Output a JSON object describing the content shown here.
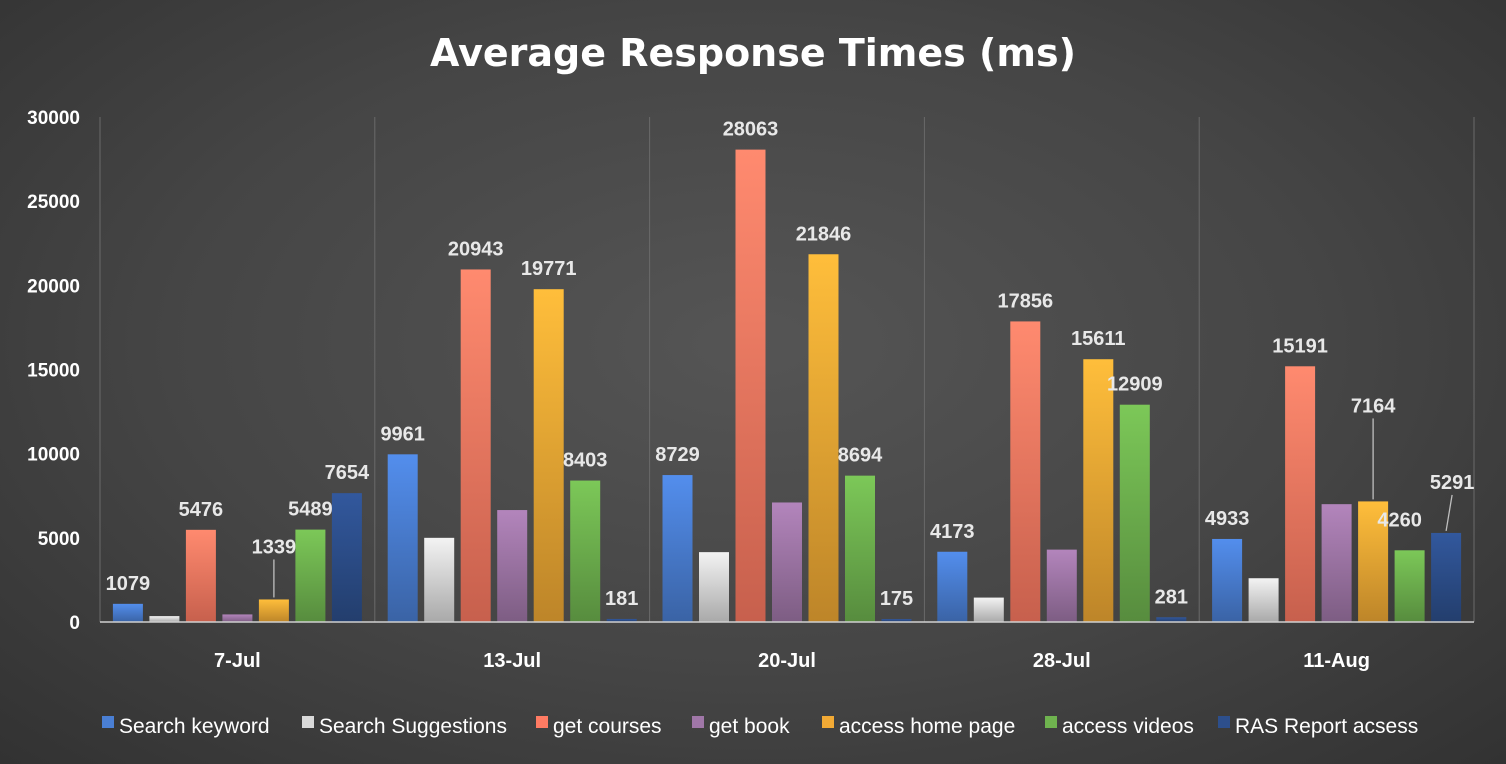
{
  "chart_data": {
    "type": "bar",
    "title": "Average Response Times (ms)",
    "xlabel": "",
    "ylabel": "",
    "ylim": [
      0,
      30000
    ],
    "yticks": [
      0,
      5000,
      10000,
      15000,
      20000,
      25000,
      30000
    ],
    "grid": "vertical category separators",
    "legend_position": "bottom",
    "categories": [
      "7-Jul",
      "13-Jul",
      "20-Jul",
      "28-Jul",
      "11-Aug"
    ],
    "series": [
      {
        "name": "Search keyword",
        "color": "#4a7fd4",
        "values": [
          1079,
          9961,
          8729,
          4173,
          4933
        ],
        "labels": [
          "1079",
          "9961",
          "8729",
          "4173",
          "4933"
        ]
      },
      {
        "name": "Search Suggestions",
        "color": "#d9d9d9",
        "values": [
          350,
          5000,
          4150,
          1450,
          2600
        ],
        "labels": [
          "",
          "",
          "",
          "",
          ""
        ]
      },
      {
        "name": "get courses",
        "color": "#ff7b63",
        "values": [
          5476,
          20943,
          28063,
          17856,
          15191
        ],
        "labels": [
          "5476",
          "20943",
          "28063",
          "17856",
          "15191"
        ]
      },
      {
        "name": "get book",
        "color": "#a077a8",
        "values": [
          450,
          6650,
          7100,
          4300,
          7000
        ],
        "labels": [
          "",
          "",
          "",
          "",
          ""
        ]
      },
      {
        "name": "access home page",
        "color": "#f2aa35",
        "values": [
          1339,
          19771,
          21846,
          15611,
          7164
        ],
        "labels": [
          "1339",
          "19771",
          "21846",
          "15611",
          "7164"
        ]
      },
      {
        "name": "access videos",
        "color": "#6fb34f",
        "values": [
          5489,
          8403,
          8694,
          12909,
          4260
        ],
        "labels": [
          "5489",
          "8403",
          "8694",
          "12909",
          "4260"
        ]
      },
      {
        "name": "RAS Report acsess",
        "color": "#2d4f8c",
        "values": [
          7654,
          181,
          175,
          281,
          5291
        ],
        "labels": [
          "7654",
          "181",
          "175",
          "281",
          "5291"
        ]
      }
    ]
  }
}
